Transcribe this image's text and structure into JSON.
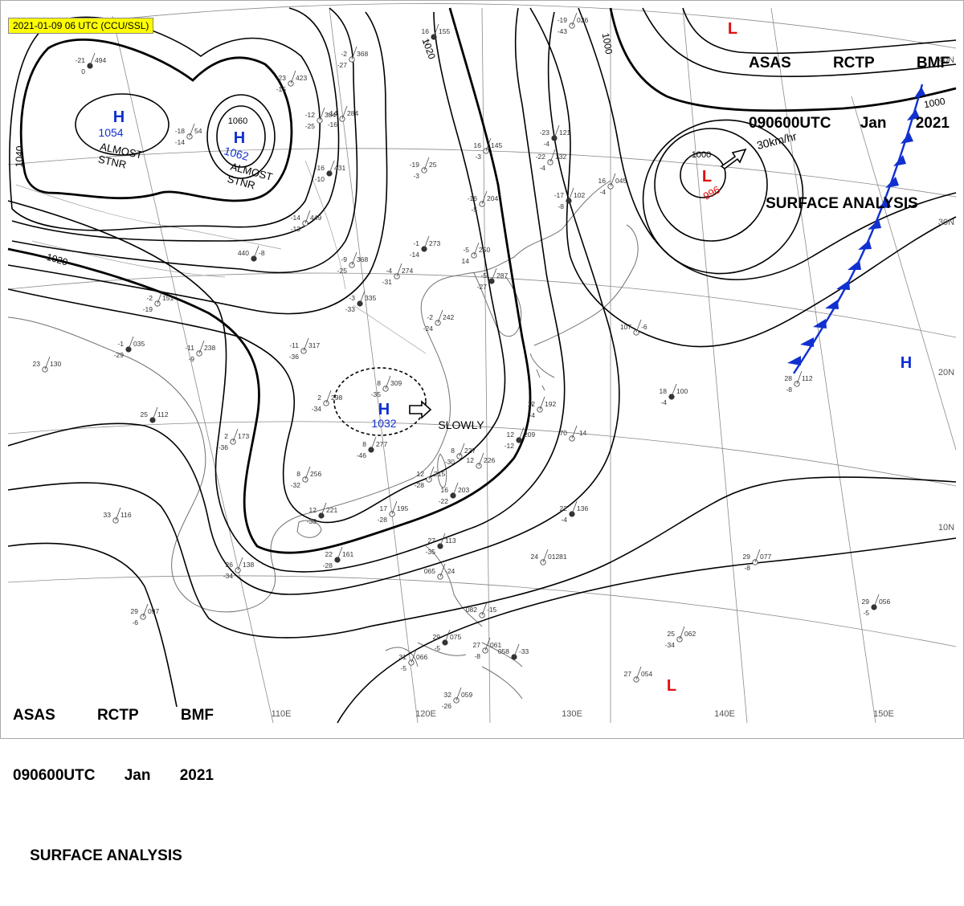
{
  "timestamp_badge": "2021-01-09 06 UTC (CCU/SSL)",
  "header": {
    "agency": "ASAS",
    "station": "RCTP",
    "office": "BMF",
    "datetime": "090600UTC",
    "month": "Jan",
    "year": "2021",
    "product": "SURFACE ANALYSIS"
  },
  "pressure_systems": [
    {
      "type": "H",
      "pressure": "1054",
      "note": "ALMOST STNR"
    },
    {
      "type": "H",
      "pressure": "1062",
      "note": "ALMOST STNR"
    },
    {
      "type": "H",
      "pressure": "1032",
      "note": "SLOWLY"
    },
    {
      "type": "L",
      "pressure": "996",
      "note": "30km/hr"
    },
    {
      "type": "L",
      "pressure": "",
      "note": ""
    },
    {
      "type": "L",
      "pressure": "",
      "note": ""
    },
    {
      "type": "H",
      "pressure": "",
      "note": ""
    }
  ],
  "isobar_labels": [
    "1060",
    "1040",
    "1020",
    "1020",
    "1000",
    "1000",
    "1000"
  ],
  "longitude_labels": [
    "110E",
    "120E",
    "130E",
    "140E",
    "150E"
  ],
  "latitude_labels": [
    "40N",
    "30N",
    "20N",
    "10N"
  ],
  "colors": {
    "high": "#1030d0",
    "low": "#e01010",
    "front": "#1030d0",
    "isobar": "#000000",
    "coast": "#707070",
    "grid": "#888888",
    "badge": "#ffff00"
  },
  "station_plots": [
    [
      "-21",
      "494",
      "0"
    ],
    [
      "-23",
      "423",
      "-15"
    ],
    [
      "-12",
      "384",
      "-25"
    ],
    [
      "-16",
      "431",
      "-10"
    ],
    [
      "-14",
      "449",
      "-13"
    ],
    [
      "-9",
      "368",
      "-25"
    ],
    [
      "-3",
      "335",
      "-33"
    ],
    [
      "-19",
      "25",
      "-3"
    ],
    [
      "16",
      "145",
      "-3"
    ],
    [
      "-23",
      "121",
      "-4"
    ],
    [
      "-22",
      "132",
      "-4"
    ],
    [
      "-16",
      "204",
      "-5"
    ],
    [
      "-17",
      "102",
      "-8"
    ],
    [
      "16",
      "045",
      "-4"
    ],
    [
      "-5",
      "250",
      "14"
    ],
    [
      "-5",
      "287",
      "-27"
    ],
    [
      "-2",
      "242",
      "-24"
    ],
    [
      "-11",
      "317",
      "-36"
    ],
    [
      "-1",
      "273",
      "-14"
    ],
    [
      "-4",
      "274",
      "-31"
    ],
    [
      "23",
      "130",
      ""
    ],
    [
      "25",
      "112",
      ""
    ],
    [
      "-11",
      "238",
      "-9"
    ],
    [
      "-2",
      "151",
      "-19"
    ],
    [
      "-1",
      "035",
      "-29"
    ],
    [
      "2",
      "298",
      "-34"
    ],
    [
      "8",
      "309",
      "-35"
    ],
    [
      "8",
      "277",
      "-46"
    ],
    [
      "2",
      "173",
      "-36"
    ],
    [
      "8",
      "256",
      "-32"
    ],
    [
      "12",
      "221",
      "-33"
    ],
    [
      "17",
      "195",
      "-28"
    ],
    [
      "8",
      "227",
      "-30"
    ],
    [
      "16",
      "203",
      "-22"
    ],
    [
      "12",
      "215",
      "-28"
    ],
    [
      "12",
      "226",
      ""
    ],
    [
      "12",
      "209",
      "-12"
    ],
    [
      "12",
      "192",
      "-4"
    ],
    [
      "70",
      "-14",
      ""
    ],
    [
      "18",
      "100",
      "-4"
    ],
    [
      "28",
      "112",
      "-8"
    ],
    [
      "107",
      "-6",
      ""
    ],
    [
      "22",
      "136",
      "-4"
    ],
    [
      "24",
      "01281",
      ""
    ],
    [
      "26",
      "138",
      "-34"
    ],
    [
      "22",
      "161",
      "-28"
    ],
    [
      "29",
      "097",
      "-6"
    ],
    [
      "33",
      "116",
      ""
    ],
    [
      "27",
      "113",
      "-35"
    ],
    [
      "065",
      "-24",
      ""
    ],
    [
      "082",
      "-15",
      ""
    ],
    [
      "29",
      "075",
      "-5"
    ],
    [
      "27",
      "061",
      "-8"
    ],
    [
      "31",
      "066",
      "-5"
    ],
    [
      "058",
      "-33",
      ""
    ],
    [
      "32",
      "059",
      "-26"
    ],
    [
      "29",
      "077",
      "-8"
    ],
    [
      "29",
      "056",
      "-5"
    ],
    [
      "25",
      "062",
      "-34"
    ],
    [
      "27",
      "054",
      ""
    ],
    [
      "16",
      "155",
      "-2"
    ],
    [
      "-2",
      "368",
      "-27"
    ],
    [
      "-19",
      "026",
      "-43"
    ],
    [
      "440",
      "-8",
      ""
    ],
    [
      "-18",
      "54",
      "-14"
    ],
    [
      "-14",
      "284",
      "-16"
    ]
  ]
}
